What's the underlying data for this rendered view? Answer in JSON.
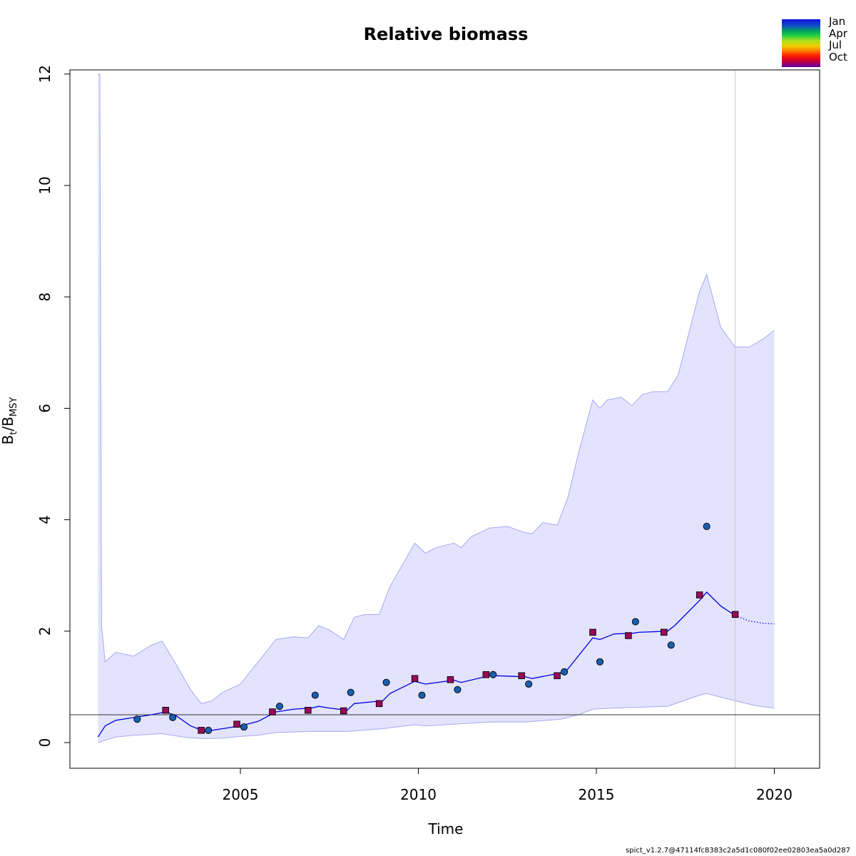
{
  "chart_data": {
    "type": "line",
    "title": "Relative biomass",
    "xlabel": "Time",
    "ylabel": {
      "main": "B",
      "sub1": "t",
      "sep": "/B",
      "sub2": "MSY"
    },
    "xlim": [
      2001,
      2021
    ],
    "ylim": [
      0,
      12
    ],
    "xticks": [
      2005,
      2010,
      2015,
      2020
    ],
    "yticks": [
      0,
      2,
      4,
      6,
      8,
      10,
      12
    ],
    "reference_line_y": 0.5,
    "vertical_line_x": 2018.9,
    "estimate": {
      "x": [
        2001.0,
        2001.2,
        2001.5,
        2002.0,
        2002.5,
        2002.9,
        2003.2,
        2003.6,
        2004.0,
        2004.5,
        2005.0,
        2005.5,
        2006.0,
        2006.5,
        2007.0,
        2007.2,
        2007.5,
        2008.0,
        2008.2,
        2009.0,
        2009.2,
        2009.9,
        2010.2,
        2011.0,
        2011.2,
        2012.0,
        2012.2,
        2013.0,
        2013.2,
        2014.0,
        2014.2,
        2014.9,
        2015.1,
        2015.5,
        2016.0,
        2016.2,
        2017.0,
        2017.2,
        2017.9,
        2018.1,
        2018.5,
        2018.9
      ],
      "y": [
        0.1,
        0.3,
        0.4,
        0.45,
        0.5,
        0.55,
        0.48,
        0.3,
        0.2,
        0.25,
        0.3,
        0.38,
        0.55,
        0.6,
        0.62,
        0.65,
        0.62,
        0.58,
        0.7,
        0.75,
        0.88,
        1.1,
        1.05,
        1.12,
        1.08,
        1.2,
        1.2,
        1.18,
        1.15,
        1.25,
        1.32,
        1.88,
        1.85,
        1.95,
        1.96,
        1.98,
        2.0,
        2.1,
        2.55,
        2.7,
        2.45,
        2.28
      ]
    },
    "prediction": {
      "x": [
        2018.9,
        2019.3,
        2019.7,
        2020.0
      ],
      "y": [
        2.28,
        2.18,
        2.14,
        2.13
      ]
    },
    "ci_upper": {
      "x": [
        2001.0,
        2001.02,
        2001.05,
        2001.1,
        2001.2,
        2001.5,
        2002.0,
        2002.5,
        2002.8,
        2003.2,
        2003.6,
        2003.9,
        2004.2,
        2004.5,
        2005.0,
        2005.5,
        2006.0,
        2006.5,
        2006.9,
        2007.2,
        2007.5,
        2007.9,
        2008.2,
        2008.5,
        2008.9,
        2009.2,
        2009.9,
        2010.2,
        2010.5,
        2011.0,
        2011.2,
        2011.5,
        2012.0,
        2012.5,
        2013.0,
        2013.2,
        2013.5,
        2013.9,
        2014.2,
        2014.5,
        2014.9,
        2015.1,
        2015.3,
        2015.7,
        2016.0,
        2016.3,
        2016.6,
        2017.0,
        2017.3,
        2017.6,
        2017.9,
        2018.1,
        2018.5,
        2018.9,
        2019.3,
        2019.7,
        2020.0
      ],
      "y": [
        12.0,
        12.0,
        12.0,
        2.1,
        1.45,
        1.62,
        1.55,
        1.75,
        1.82,
        1.4,
        0.95,
        0.7,
        0.75,
        0.9,
        1.05,
        1.45,
        1.85,
        1.9,
        1.88,
        2.1,
        2.02,
        1.85,
        2.25,
        2.3,
        2.3,
        2.8,
        3.58,
        3.4,
        3.5,
        3.58,
        3.5,
        3.7,
        3.85,
        3.88,
        3.77,
        3.75,
        3.95,
        3.9,
        4.4,
        5.2,
        6.15,
        6.0,
        6.15,
        6.2,
        6.05,
        6.25,
        6.3,
        6.3,
        6.6,
        7.35,
        8.1,
        8.4,
        7.45,
        7.1,
        7.1,
        7.25,
        7.4
      ]
    },
    "ci_lower": {
      "x": [
        2001.0,
        2001.5,
        2002.0,
        2002.8,
        2003.5,
        2004.0,
        2004.5,
        2005.0,
        2005.5,
        2006.0,
        2007.0,
        2008.0,
        2009.0,
        2009.9,
        2010.2,
        2011.0,
        2012.0,
        2013.0,
        2014.0,
        2014.5,
        2014.9,
        2015.5,
        2016.0,
        2017.0,
        2017.9,
        2018.1,
        2018.9,
        2019.5,
        2020.0
      ],
      "y": [
        0.0,
        0.1,
        0.13,
        0.16,
        0.09,
        0.07,
        0.08,
        0.11,
        0.13,
        0.18,
        0.2,
        0.2,
        0.25,
        0.32,
        0.3,
        0.33,
        0.37,
        0.37,
        0.42,
        0.5,
        0.6,
        0.62,
        0.63,
        0.65,
        0.85,
        0.88,
        0.75,
        0.66,
        0.62
      ]
    },
    "index_1": {
      "marker": "square",
      "color": "#9a0a5a",
      "x": [
        2002.9,
        2003.9,
        2004.9,
        2005.9,
        2006.9,
        2007.9,
        2008.9,
        2009.9,
        2010.9,
        2011.9,
        2012.9,
        2013.9,
        2014.9,
        2015.9,
        2016.9,
        2017.9,
        2018.9
      ],
      "y": [
        0.58,
        0.22,
        0.33,
        0.55,
        0.58,
        0.57,
        0.7,
        1.15,
        1.13,
        1.22,
        1.2,
        1.2,
        1.98,
        1.92,
        1.98,
        2.65,
        2.3
      ]
    },
    "index_2": {
      "marker": "circle",
      "color": "#1a5fae",
      "x": [
        2002.1,
        2003.1,
        2004.1,
        2005.1,
        2006.1,
        2007.1,
        2008.1,
        2009.1,
        2010.1,
        2011.1,
        2012.1,
        2013.1,
        2014.1,
        2015.1,
        2016.1,
        2017.1,
        2018.1
      ],
      "y": [
        0.42,
        0.45,
        0.22,
        0.28,
        0.65,
        0.85,
        0.9,
        1.08,
        0.85,
        0.95,
        1.22,
        1.05,
        1.27,
        1.45,
        2.17,
        1.75,
        3.88
      ]
    },
    "legend": {
      "placement": "top-right",
      "entries": [
        "Jan",
        "Apr",
        "Jul",
        "Oct"
      ]
    },
    "colors": {
      "ci_fill": "#e3e3fd",
      "ci_border": "#a8a8f0",
      "estimate_line": "#0000e0"
    },
    "footer": "spict_v1.2.7@47114fc8383c2a5d1c080f02ee02803ea5a0d287"
  }
}
